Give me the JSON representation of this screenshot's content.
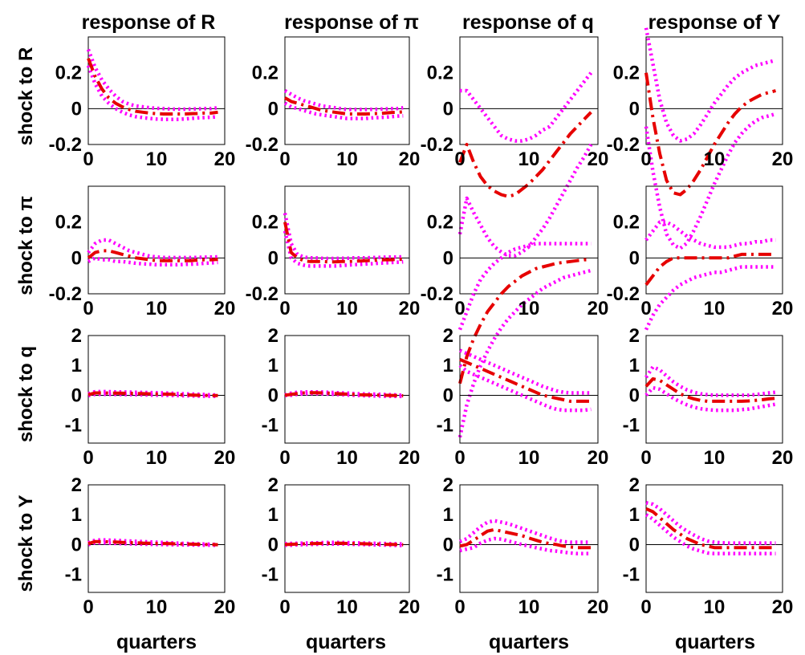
{
  "figure": {
    "column_titles": [
      "response of R",
      "response of π",
      "response of q",
      "response of Y"
    ],
    "row_labels": [
      "shock to R",
      "shock to π",
      "shock to q",
      "shock to Y"
    ],
    "xlabel": "quarters"
  },
  "chart_data": {
    "type": "line",
    "x": [
      0,
      1,
      2,
      3,
      4,
      5,
      6,
      7,
      8,
      9,
      10,
      11,
      12,
      13,
      14,
      15,
      16,
      17,
      18,
      19
    ],
    "xlim": [
      0,
      20
    ],
    "xticks": [
      0,
      10,
      20
    ],
    "row_axes": [
      {
        "ylim": [
          -0.2,
          0.4
        ],
        "yticks": [
          -0.2,
          0,
          0.2
        ],
        "ytick_labels": [
          "-0.2",
          "0",
          "0.2"
        ]
      },
      {
        "ylim": [
          -0.2,
          0.4
        ],
        "yticks": [
          -0.2,
          0,
          0.2
        ],
        "ytick_labels": [
          "-0.2",
          "0",
          "0.2"
        ]
      },
      {
        "ylim": [
          -1.6,
          2.0
        ],
        "yticks": [
          -1,
          0,
          1,
          2
        ],
        "ytick_labels": [
          "-1",
          "0",
          "1",
          "2"
        ]
      },
      {
        "ylim": [
          -1.6,
          2.0
        ],
        "yticks": [
          -1,
          0,
          1,
          2
        ],
        "ytick_labels": [
          "-1",
          "0",
          "1",
          "2"
        ]
      }
    ],
    "series_style": {
      "median": "red dash-dot",
      "bands": "magenta dotted"
    },
    "panels": [
      {
        "shock": "R",
        "response": "R",
        "median": [
          0.28,
          0.18,
          0.11,
          0.06,
          0.03,
          0.01,
          -0.005,
          -0.015,
          -0.02,
          -0.025,
          -0.028,
          -0.03,
          -0.03,
          -0.03,
          -0.03,
          -0.028,
          -0.027,
          -0.025,
          -0.025,
          -0.02
        ],
        "upper": [
          0.33,
          0.23,
          0.16,
          0.11,
          0.07,
          0.04,
          0.025,
          0.015,
          0.01,
          0.005,
          0.002,
          0.0,
          -0.002,
          -0.003,
          -0.003,
          -0.002,
          -0.001,
          0.0,
          0.0,
          0.005
        ],
        "lower": [
          0.24,
          0.14,
          0.07,
          0.03,
          0.0,
          -0.02,
          -0.035,
          -0.045,
          -0.05,
          -0.055,
          -0.058,
          -0.06,
          -0.06,
          -0.06,
          -0.058,
          -0.055,
          -0.052,
          -0.05,
          -0.048,
          -0.045
        ]
      },
      {
        "shock": "R",
        "response": "π",
        "median": [
          0.06,
          0.04,
          0.03,
          0.02,
          0.01,
          0.0,
          -0.01,
          -0.015,
          -0.02,
          -0.025,
          -0.03,
          -0.03,
          -0.03,
          -0.03,
          -0.028,
          -0.027,
          -0.025,
          -0.022,
          -0.02,
          -0.018
        ],
        "upper": [
          0.1,
          0.08,
          0.06,
          0.045,
          0.035,
          0.025,
          0.015,
          0.01,
          0.005,
          0.0,
          -0.005,
          -0.005,
          -0.005,
          -0.005,
          -0.004,
          -0.003,
          -0.002,
          0.0,
          0.0,
          0.005
        ],
        "lower": [
          0.03,
          0.01,
          0.0,
          -0.01,
          -0.02,
          -0.03,
          -0.035,
          -0.04,
          -0.045,
          -0.05,
          -0.055,
          -0.055,
          -0.055,
          -0.055,
          -0.052,
          -0.05,
          -0.048,
          -0.045,
          -0.042,
          -0.04
        ]
      },
      {
        "shock": "R",
        "response": "q",
        "median": [
          -0.3,
          -0.2,
          -0.3,
          -0.38,
          -0.43,
          -0.46,
          -0.48,
          -0.49,
          -0.48,
          -0.45,
          -0.42,
          -0.38,
          -0.34,
          -0.29,
          -0.24,
          -0.19,
          -0.14,
          -0.1,
          -0.06,
          -0.02
        ],
        "upper": [
          0.1,
          0.1,
          0.05,
          0.0,
          -0.05,
          -0.1,
          -0.15,
          -0.17,
          -0.18,
          -0.18,
          -0.17,
          -0.15,
          -0.12,
          -0.1,
          -0.05,
          0.0,
          0.05,
          0.1,
          0.15,
          0.2
        ],
        "lower": [
          -0.7,
          -0.5,
          -0.58,
          -0.65,
          -0.72,
          -0.77,
          -0.8,
          -0.82,
          -0.82,
          -0.8,
          -0.77,
          -0.72,
          -0.67,
          -0.61,
          -0.54,
          -0.47,
          -0.4,
          -0.33,
          -0.27,
          -0.2
        ]
      },
      {
        "shock": "R",
        "response": "Y",
        "median": [
          0.2,
          -0.05,
          -0.25,
          -0.4,
          -0.47,
          -0.48,
          -0.45,
          -0.4,
          -0.34,
          -0.27,
          -0.2,
          -0.14,
          -0.08,
          -0.03,
          0.01,
          0.04,
          0.06,
          0.08,
          0.09,
          0.1
        ],
        "upper": [
          0.45,
          0.25,
          0.05,
          -0.08,
          -0.15,
          -0.18,
          -0.17,
          -0.14,
          -0.09,
          -0.03,
          0.03,
          0.08,
          0.13,
          0.17,
          0.2,
          0.22,
          0.24,
          0.25,
          0.26,
          0.27
        ],
        "lower": [
          -0.1,
          -0.35,
          -0.55,
          -0.7,
          -0.76,
          -0.78,
          -0.75,
          -0.68,
          -0.6,
          -0.51,
          -0.42,
          -0.34,
          -0.26,
          -0.19,
          -0.14,
          -0.1,
          -0.07,
          -0.05,
          -0.04,
          -0.03
        ]
      },
      {
        "shock": "π",
        "response": "R",
        "median": [
          0.0,
          0.03,
          0.04,
          0.04,
          0.03,
          0.02,
          0.01,
          0.0,
          -0.005,
          -0.01,
          -0.015,
          -0.015,
          -0.015,
          -0.015,
          -0.015,
          -0.015,
          -0.012,
          -0.01,
          -0.01,
          -0.008
        ],
        "upper": [
          0.03,
          0.08,
          0.1,
          0.1,
          0.08,
          0.06,
          0.04,
          0.03,
          0.02,
          0.01,
          0.005,
          0.003,
          0.002,
          0.002,
          0.002,
          0.002,
          0.003,
          0.004,
          0.005,
          0.006
        ],
        "lower": [
          -0.02,
          0.0,
          -0.01,
          -0.01,
          -0.02,
          -0.02,
          -0.025,
          -0.03,
          -0.033,
          -0.035,
          -0.038,
          -0.038,
          -0.038,
          -0.038,
          -0.036,
          -0.035,
          -0.033,
          -0.03,
          -0.028,
          -0.025
        ]
      },
      {
        "shock": "π",
        "response": "π",
        "median": [
          0.2,
          0.03,
          0.0,
          -0.015,
          -0.02,
          -0.02,
          -0.02,
          -0.022,
          -0.022,
          -0.02,
          -0.02,
          -0.018,
          -0.017,
          -0.015,
          -0.014,
          -0.012,
          -0.01,
          -0.01,
          -0.008,
          -0.008
        ],
        "upper": [
          0.25,
          0.08,
          0.02,
          0.005,
          0.0,
          0.0,
          -0.002,
          -0.003,
          -0.003,
          -0.002,
          -0.002,
          0.0,
          0.0,
          0.0,
          0.002,
          0.003,
          0.004,
          0.005,
          0.005,
          0.006
        ],
        "lower": [
          0.15,
          0.0,
          -0.03,
          -0.04,
          -0.045,
          -0.045,
          -0.045,
          -0.045,
          -0.045,
          -0.043,
          -0.04,
          -0.038,
          -0.036,
          -0.034,
          -0.032,
          -0.03,
          -0.028,
          -0.026,
          -0.024,
          -0.022
        ]
      },
      {
        "shock": "π",
        "response": "q",
        "median": [
          -0.7,
          -0.55,
          -0.45,
          -0.37,
          -0.3,
          -0.25,
          -0.2,
          -0.16,
          -0.13,
          -0.1,
          -0.08,
          -0.06,
          -0.05,
          -0.04,
          -0.03,
          -0.025,
          -0.02,
          -0.015,
          -0.01,
          -0.01
        ],
        "upper": [
          -0.4,
          -0.3,
          -0.2,
          -0.12,
          -0.07,
          -0.03,
          0.0,
          0.03,
          0.05,
          0.06,
          0.07,
          0.08,
          0.08,
          0.08,
          0.08,
          0.08,
          0.08,
          0.08,
          0.08,
          0.08
        ],
        "lower": [
          -1.0,
          -0.82,
          -0.7,
          -0.6,
          -0.52,
          -0.45,
          -0.39,
          -0.34,
          -0.3,
          -0.26,
          -0.23,
          -0.2,
          -0.17,
          -0.15,
          -0.13,
          -0.11,
          -0.1,
          -0.09,
          -0.08,
          -0.07
        ]
      },
      {
        "shock": "π",
        "response": "Y",
        "median": [
          -0.15,
          -0.1,
          -0.05,
          -0.02,
          0.0,
          0.0,
          0.0,
          0.0,
          0.0,
          0.0,
          0.0,
          0.0,
          0.0,
          0.01,
          0.02,
          0.02,
          0.02,
          0.02,
          0.02,
          0.02
        ],
        "upper": [
          0.1,
          0.15,
          0.2,
          0.2,
          0.18,
          0.15,
          0.12,
          0.1,
          0.08,
          0.07,
          0.06,
          0.06,
          0.06,
          0.07,
          0.08,
          0.08,
          0.09,
          0.09,
          0.1,
          0.1
        ],
        "lower": [
          -0.4,
          -0.32,
          -0.26,
          -0.22,
          -0.18,
          -0.15,
          -0.13,
          -0.11,
          -0.1,
          -0.09,
          -0.08,
          -0.08,
          -0.07,
          -0.06,
          -0.05,
          -0.05,
          -0.05,
          -0.05,
          -0.05,
          -0.05
        ]
      },
      {
        "shock": "q",
        "response": "R",
        "median": [
          0.02,
          0.08,
          0.08,
          0.075,
          0.072,
          0.068,
          0.065,
          0.06,
          0.055,
          0.05,
          0.045,
          0.04,
          0.035,
          0.025,
          0.015,
          0.008,
          0.0,
          -0.005,
          -0.008,
          -0.01
        ],
        "upper": [
          0.05,
          0.12,
          0.125,
          0.12,
          0.115,
          0.11,
          0.105,
          0.1,
          0.095,
          0.09,
          0.085,
          0.08,
          0.07,
          0.06,
          0.05,
          0.045,
          0.035,
          0.025,
          0.015,
          0.01
        ],
        "lower": [
          -0.01,
          0.03,
          0.03,
          0.03,
          0.028,
          0.025,
          0.022,
          0.02,
          0.015,
          0.01,
          0.005,
          0.0,
          -0.005,
          -0.01,
          -0.015,
          -0.02,
          -0.025,
          -0.03,
          -0.033,
          -0.035
        ]
      },
      {
        "shock": "q",
        "response": "π",
        "median": [
          0.0,
          0.03,
          0.06,
          0.08,
          0.085,
          0.085,
          0.08,
          0.07,
          0.06,
          0.05,
          0.04,
          0.03,
          0.02,
          0.015,
          0.01,
          0.005,
          0.0,
          -0.005,
          -0.01,
          -0.015
        ],
        "upper": [
          0.01,
          0.07,
          0.1,
          0.11,
          0.115,
          0.115,
          0.11,
          0.1,
          0.09,
          0.08,
          0.07,
          0.06,
          0.05,
          0.045,
          0.04,
          0.035,
          0.025,
          0.02,
          0.01,
          0.0
        ],
        "lower": [
          -0.01,
          0.0,
          0.03,
          0.05,
          0.06,
          0.055,
          0.05,
          0.04,
          0.03,
          0.02,
          0.01,
          0.0,
          -0.01,
          -0.015,
          -0.02,
          -0.025,
          -0.03,
          -0.033,
          -0.035,
          -0.04
        ]
      },
      {
        "shock": "q",
        "response": "q",
        "median": [
          1.2,
          1.1,
          1.0,
          0.9,
          0.8,
          0.7,
          0.6,
          0.5,
          0.4,
          0.3,
          0.2,
          0.1,
          0.0,
          -0.05,
          -0.1,
          -0.15,
          -0.2,
          -0.2,
          -0.2,
          -0.2
        ],
        "upper": [
          1.5,
          1.4,
          1.3,
          1.2,
          1.1,
          1.0,
          0.9,
          0.8,
          0.7,
          0.6,
          0.5,
          0.4,
          0.3,
          0.22,
          0.15,
          0.1,
          0.08,
          0.08,
          0.08,
          0.08
        ],
        "lower": [
          1.0,
          0.8,
          0.7,
          0.6,
          0.5,
          0.4,
          0.3,
          0.2,
          0.1,
          0.0,
          -0.1,
          -0.2,
          -0.3,
          -0.4,
          -0.47,
          -0.5,
          -0.5,
          -0.5,
          -0.5,
          -0.47
        ]
      },
      {
        "shock": "q",
        "response": "Y",
        "median": [
          0.3,
          0.55,
          0.5,
          0.35,
          0.2,
          0.05,
          -0.05,
          -0.12,
          -0.17,
          -0.2,
          -0.2,
          -0.2,
          -0.2,
          -0.2,
          -0.2,
          -0.19,
          -0.17,
          -0.15,
          -0.12,
          -0.1
        ],
        "upper": [
          0.6,
          0.95,
          0.85,
          0.65,
          0.45,
          0.3,
          0.18,
          0.1,
          0.05,
          0.02,
          0.0,
          0.0,
          0.0,
          0.0,
          0.0,
          0.0,
          0.02,
          0.05,
          0.08,
          0.1
        ],
        "lower": [
          0.0,
          0.25,
          0.2,
          0.05,
          -0.1,
          -0.22,
          -0.32,
          -0.4,
          -0.45,
          -0.48,
          -0.5,
          -0.5,
          -0.5,
          -0.5,
          -0.48,
          -0.46,
          -0.42,
          -0.38,
          -0.34,
          -0.3
        ]
      },
      {
        "shock": "Y",
        "response": "R",
        "median": [
          0.03,
          0.1,
          0.1,
          0.09,
          0.085,
          0.075,
          0.065,
          0.06,
          0.05,
          0.045,
          0.04,
          0.035,
          0.03,
          0.025,
          0.02,
          0.015,
          0.01,
          0.005,
          0.0,
          -0.005
        ],
        "upper": [
          0.06,
          0.15,
          0.16,
          0.15,
          0.14,
          0.13,
          0.12,
          0.11,
          0.1,
          0.09,
          0.08,
          0.07,
          0.06,
          0.05,
          0.04,
          0.035,
          0.025,
          0.02,
          0.012,
          0.005
        ],
        "lower": [
          0.0,
          0.06,
          0.06,
          0.05,
          0.04,
          0.03,
          0.025,
          0.02,
          0.015,
          0.01,
          0.005,
          0.0,
          -0.005,
          -0.008,
          -0.01,
          -0.012,
          -0.015,
          -0.017,
          -0.02,
          -0.02
        ]
      },
      {
        "shock": "Y",
        "response": "π",
        "median": [
          0.0,
          0.01,
          0.02,
          0.025,
          0.03,
          0.035,
          0.04,
          0.045,
          0.045,
          0.045,
          0.04,
          0.035,
          0.03,
          0.025,
          0.02,
          0.015,
          0.01,
          0.005,
          0.0,
          -0.005
        ],
        "upper": [
          0.03,
          0.04,
          0.045,
          0.05,
          0.055,
          0.06,
          0.065,
          0.07,
          0.07,
          0.07,
          0.065,
          0.06,
          0.055,
          0.05,
          0.045,
          0.04,
          0.035,
          0.03,
          0.025,
          0.02
        ],
        "lower": [
          -0.02,
          -0.02,
          -0.01,
          0.0,
          0.005,
          0.01,
          0.015,
          0.02,
          0.02,
          0.02,
          0.015,
          0.01,
          0.005,
          0.0,
          -0.005,
          -0.01,
          -0.015,
          -0.02,
          -0.025,
          -0.03
        ]
      },
      {
        "shock": "Y",
        "response": "q",
        "median": [
          -0.05,
          0.0,
          0.15,
          0.3,
          0.45,
          0.5,
          0.45,
          0.4,
          0.35,
          0.3,
          0.22,
          0.15,
          0.08,
          0.03,
          0.0,
          -0.05,
          -0.08,
          -0.1,
          -0.1,
          -0.1
        ],
        "upper": [
          0.1,
          0.2,
          0.4,
          0.6,
          0.75,
          0.8,
          0.75,
          0.7,
          0.62,
          0.54,
          0.46,
          0.38,
          0.3,
          0.22,
          0.15,
          0.1,
          0.08,
          0.08,
          0.08,
          0.08
        ],
        "lower": [
          -0.2,
          -0.15,
          -0.1,
          0.05,
          0.15,
          0.2,
          0.18,
          0.12,
          0.06,
          0.0,
          -0.05,
          -0.1,
          -0.15,
          -0.2,
          -0.22,
          -0.25,
          -0.28,
          -0.3,
          -0.3,
          -0.3
        ]
      },
      {
        "shock": "Y",
        "response": "Y",
        "median": [
          1.2,
          1.1,
          0.9,
          0.7,
          0.5,
          0.35,
          0.2,
          0.1,
          0.0,
          -0.05,
          -0.1,
          -0.1,
          -0.1,
          -0.1,
          -0.1,
          -0.1,
          -0.1,
          -0.1,
          -0.1,
          -0.1
        ],
        "upper": [
          1.4,
          1.35,
          1.2,
          1.0,
          0.8,
          0.6,
          0.45,
          0.32,
          0.2,
          0.12,
          0.08,
          0.06,
          0.05,
          0.05,
          0.05,
          0.05,
          0.05,
          0.05,
          0.05,
          0.05
        ],
        "lower": [
          1.0,
          0.85,
          0.65,
          0.45,
          0.25,
          0.1,
          -0.05,
          -0.15,
          -0.22,
          -0.28,
          -0.3,
          -0.3,
          -0.3,
          -0.3,
          -0.3,
          -0.3,
          -0.3,
          -0.3,
          -0.3,
          -0.3
        ]
      }
    ]
  }
}
